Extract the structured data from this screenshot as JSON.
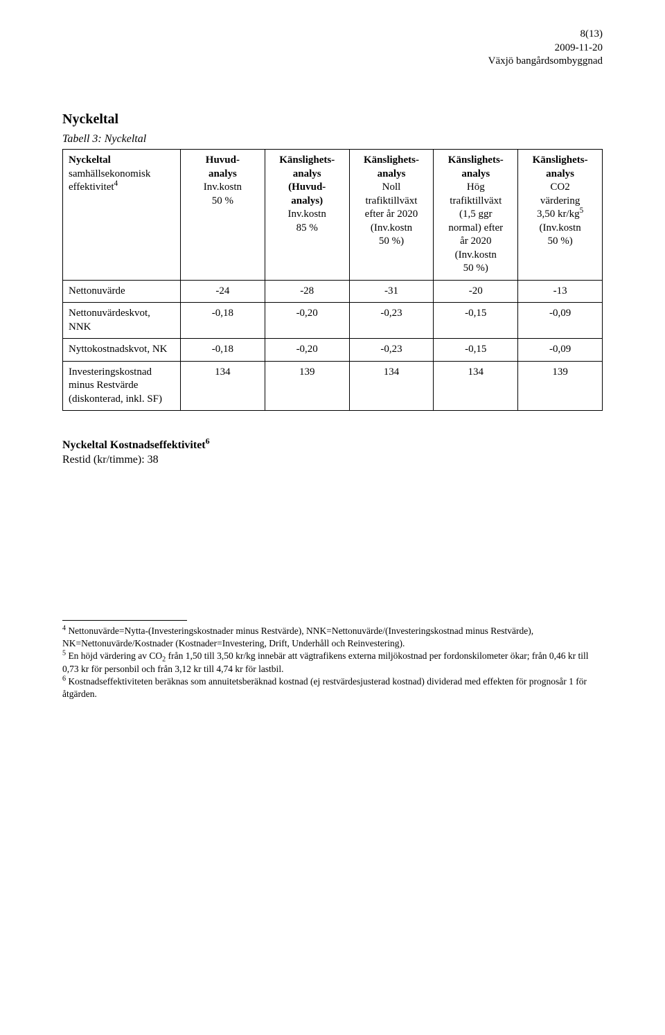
{
  "header": {
    "page_indicator": "8(13)",
    "date": "2009-11-20",
    "title": "Växjö bangårdsombyggnad"
  },
  "section": {
    "title": "Nyckeltal",
    "caption": "Tabell 3: Nyckeltal"
  },
  "table": {
    "columns": [
      {
        "line1_bold": "Nyckeltal",
        "line2": "samhällsekonomisk",
        "line3": "effektivitet",
        "sup": "4"
      },
      {
        "line1_bold": "Huvud-",
        "line2_bold": "analys",
        "line3": "Inv.kostn",
        "line4": "50 %"
      },
      {
        "line1_bold": "Känslighets-",
        "line2_bold": "analys",
        "line3_bold": "(Huvud-",
        "line4_bold": "analys)",
        "line5": "Inv.kostn",
        "line6": "85 %"
      },
      {
        "line1_bold": "Känslighets-",
        "line2_bold": "analys",
        "line3": "Noll",
        "line4": "trafiktillväxt",
        "line5": "efter år 2020",
        "line6": "(Inv.kostn",
        "line7": "50 %)"
      },
      {
        "line1_bold": "Känslighets-",
        "line2_bold": "analys",
        "line3": "Hög",
        "line4": "trafiktillväxt",
        "line5": "(1,5 ggr",
        "line6": "normal) efter",
        "line7": "år 2020",
        "line8": "(Inv.kostn",
        "line9": "50 %)"
      },
      {
        "line1_bold": "Känslighets-",
        "line2_bold": "analys",
        "line3": "CO2",
        "line4": "värdering",
        "line5_pre": "3,50 kr/kg",
        "sup": "5",
        "line6": "(Inv.kostn",
        "line7": "50 %)"
      }
    ],
    "rows": [
      {
        "label": "Nettonuvärde",
        "values": [
          "-24",
          "-28",
          "-31",
          "-20",
          "-13"
        ]
      },
      {
        "label": "Nettonuvärdeskvot, NNK",
        "values": [
          "-0,18",
          "-0,20",
          "-0,23",
          "-0,15",
          "-0,09"
        ]
      },
      {
        "label": "Nyttokostnadskvot, NK",
        "values": [
          "-0,18",
          "-0,20",
          "-0,23",
          "-0,15",
          "-0,09"
        ]
      },
      {
        "label": "Investeringskostnad minus Restvärde (diskonterad, inkl. SF)",
        "values": [
          "134",
          "139",
          "134",
          "134",
          "139"
        ]
      }
    ],
    "border_color": "#000000",
    "background_color": "#ffffff"
  },
  "subsection": {
    "title_pre": "Nyckeltal Kostnadseffektivitet",
    "title_sup": "6",
    "restid": "Restid (kr/timme): 38"
  },
  "footnotes": {
    "f4_pre": "4",
    "f4": " Nettonuvärde=Nytta-(Investeringskostnader minus Restvärde), NNK=Nettonuvärde/(Investeringskostnad minus Restvärde), NK=Nettonuvärde/Kostnader (Kostnader=Investering, Drift, Underhåll och Reinvestering).",
    "f5_pre": "5",
    "f5_a": " En höjd värdering av CO",
    "f5_sub": "2",
    "f5_b": " från 1,50 till 3,50 kr/kg innebär att vägtrafikens externa miljökostnad per fordonskilometer ökar; från 0,46 kr till 0,73 kr för personbil och från 3,12 kr till 4,74 kr för lastbil.",
    "f6_pre": "6",
    "f6": " Kostnadseffektiviteten beräknas som annuitetsberäknad kostnad (ej restvärdesjusterad kostnad) dividerad med effekten för prognosår 1 för åtgärden."
  }
}
